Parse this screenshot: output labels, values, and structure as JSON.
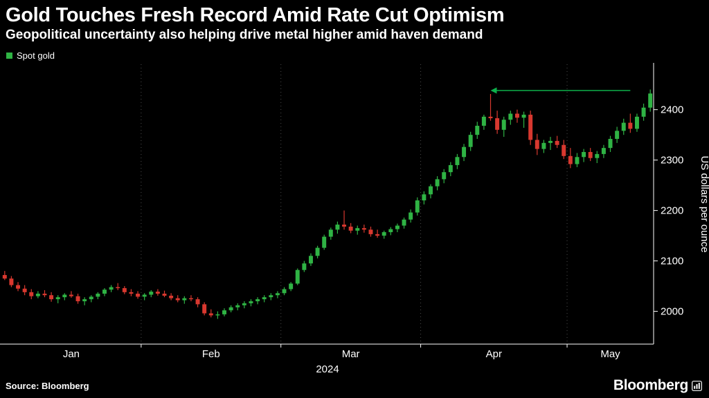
{
  "chart_data": {
    "type": "candlestick",
    "title": "Gold Touches Fresh Record Amid Rate Cut Optimism",
    "subtitle": "Geopolitical uncertainty also helping drive metal higher amid haven demand",
    "legend": [
      "Spot gold"
    ],
    "legend_position": "top-left",
    "ylabel": "US dollars per ounce",
    "ylim": [
      1935,
      2490
    ],
    "yticks": [
      2000,
      2100,
      2200,
      2300,
      2400
    ],
    "grid": "dotted-vertical-at-month-starts",
    "x_axis": {
      "year_label": "2024",
      "months": [
        {
          "label": "Jan",
          "days": 21
        },
        {
          "label": "Feb",
          "days": 21
        },
        {
          "label": "Mar",
          "days": 21
        },
        {
          "label": "Apr",
          "days": 22
        },
        {
          "label": "May",
          "days": 13
        }
      ]
    },
    "colors": {
      "background": "#000000",
      "up": "#2fb344",
      "down": "#d8382f",
      "axis": "#ffffff",
      "text": "#ffffff",
      "grid": "#4d4d4d",
      "arrow": "#0db14b"
    },
    "candles": [
      [
        2072,
        2080,
        2062,
        2065
      ],
      [
        2065,
        2070,
        2048,
        2052
      ],
      [
        2052,
        2058,
        2040,
        2045
      ],
      [
        2045,
        2052,
        2032,
        2038
      ],
      [
        2038,
        2044,
        2024,
        2030
      ],
      [
        2030,
        2040,
        2026,
        2035
      ],
      [
        2035,
        2042,
        2028,
        2032
      ],
      [
        2032,
        2038,
        2019,
        2024
      ],
      [
        2024,
        2032,
        2016,
        2028
      ],
      [
        2028,
        2036,
        2022,
        2033
      ],
      [
        2033,
        2040,
        2027,
        2030
      ],
      [
        2030,
        2035,
        2015,
        2020
      ],
      [
        2020,
        2028,
        2012,
        2024
      ],
      [
        2024,
        2032,
        2018,
        2029
      ],
      [
        2029,
        2038,
        2024,
        2035
      ],
      [
        2035,
        2046,
        2030,
        2043
      ],
      [
        2043,
        2052,
        2038,
        2048
      ],
      [
        2048,
        2056,
        2042,
        2046
      ],
      [
        2046,
        2050,
        2034,
        2038
      ],
      [
        2038,
        2044,
        2030,
        2035
      ],
      [
        2035,
        2040,
        2025,
        2029
      ],
      [
        2029,
        2036,
        2022,
        2033
      ],
      [
        2033,
        2042,
        2028,
        2039
      ],
      [
        2039,
        2044,
        2031,
        2035
      ],
      [
        2035,
        2041,
        2028,
        2031
      ],
      [
        2031,
        2036,
        2022,
        2026
      ],
      [
        2026,
        2032,
        2018,
        2022
      ],
      [
        2022,
        2030,
        2015,
        2026
      ],
      [
        2026,
        2032,
        2020,
        2024
      ],
      [
        2024,
        2028,
        2008,
        2014
      ],
      [
        2014,
        2018,
        1992,
        1996
      ],
      [
        1996,
        2004,
        1988,
        1992
      ],
      [
        1992,
        2000,
        1985,
        1994
      ],
      [
        1994,
        2006,
        1990,
        2002
      ],
      [
        2002,
        2012,
        1998,
        2008
      ],
      [
        2008,
        2016,
        2002,
        2012
      ],
      [
        2012,
        2020,
        2006,
        2016
      ],
      [
        2016,
        2024,
        2010,
        2020
      ],
      [
        2020,
        2028,
        2014,
        2024
      ],
      [
        2024,
        2032,
        2018,
        2028
      ],
      [
        2028,
        2036,
        2022,
        2032
      ],
      [
        2032,
        2040,
        2026,
        2036
      ],
      [
        2036,
        2048,
        2032,
        2044
      ],
      [
        2044,
        2058,
        2040,
        2055
      ],
      [
        2055,
        2085,
        2052,
        2082
      ],
      [
        2082,
        2100,
        2078,
        2095
      ],
      [
        2095,
        2115,
        2090,
        2110
      ],
      [
        2110,
        2130,
        2105,
        2126
      ],
      [
        2126,
        2152,
        2122,
        2148
      ],
      [
        2148,
        2166,
        2142,
        2162
      ],
      [
        2162,
        2178,
        2154,
        2172
      ],
      [
        2172,
        2200,
        2162,
        2168
      ],
      [
        2168,
        2175,
        2155,
        2160
      ],
      [
        2160,
        2170,
        2152,
        2165
      ],
      [
        2165,
        2172,
        2156,
        2162
      ],
      [
        2162,
        2168,
        2148,
        2153
      ],
      [
        2153,
        2162,
        2146,
        2150
      ],
      [
        2150,
        2160,
        2144,
        2157
      ],
      [
        2157,
        2167,
        2151,
        2163
      ],
      [
        2163,
        2174,
        2157,
        2170
      ],
      [
        2170,
        2186,
        2164,
        2182
      ],
      [
        2182,
        2202,
        2176,
        2196
      ],
      [
        2196,
        2226,
        2190,
        2220
      ],
      [
        2220,
        2238,
        2212,
        2232
      ],
      [
        2232,
        2252,
        2224,
        2248
      ],
      [
        2248,
        2268,
        2240,
        2262
      ],
      [
        2262,
        2282,
        2254,
        2276
      ],
      [
        2276,
        2296,
        2268,
        2290
      ],
      [
        2290,
        2312,
        2282,
        2306
      ],
      [
        2306,
        2332,
        2298,
        2326
      ],
      [
        2326,
        2356,
        2318,
        2350
      ],
      [
        2350,
        2376,
        2342,
        2368
      ],
      [
        2368,
        2390,
        2360,
        2386
      ],
      [
        2386,
        2431,
        2378,
        2383
      ],
      [
        2383,
        2398,
        2352,
        2360
      ],
      [
        2360,
        2386,
        2346,
        2380
      ],
      [
        2380,
        2398,
        2370,
        2392
      ],
      [
        2392,
        2400,
        2374,
        2384
      ],
      [
        2384,
        2396,
        2364,
        2390
      ],
      [
        2390,
        2398,
        2330,
        2340
      ],
      [
        2340,
        2352,
        2310,
        2322
      ],
      [
        2322,
        2340,
        2314,
        2334
      ],
      [
        2334,
        2346,
        2320,
        2338
      ],
      [
        2338,
        2348,
        2324,
        2330
      ],
      [
        2330,
        2340,
        2302,
        2308
      ],
      [
        2308,
        2324,
        2284,
        2292
      ],
      [
        2292,
        2314,
        2286,
        2306
      ],
      [
        2306,
        2322,
        2296,
        2316
      ],
      [
        2316,
        2324,
        2298,
        2304
      ],
      [
        2304,
        2318,
        2294,
        2312
      ],
      [
        2312,
        2330,
        2304,
        2324
      ],
      [
        2324,
        2348,
        2316,
        2342
      ],
      [
        2342,
        2366,
        2334,
        2358
      ],
      [
        2358,
        2382,
        2350,
        2374
      ],
      [
        2374,
        2392,
        2354,
        2362
      ],
      [
        2362,
        2392,
        2356,
        2386
      ],
      [
        2386,
        2412,
        2378,
        2404
      ],
      [
        2404,
        2440,
        2396,
        2432
      ]
    ],
    "annotations": [
      {
        "type": "arrow",
        "y": 2438,
        "from_candle": 94,
        "to_candle": 73,
        "color": "#0db14b"
      }
    ]
  },
  "footer": {
    "source": "Source: Bloomberg",
    "logo_text": "Bloomberg"
  }
}
